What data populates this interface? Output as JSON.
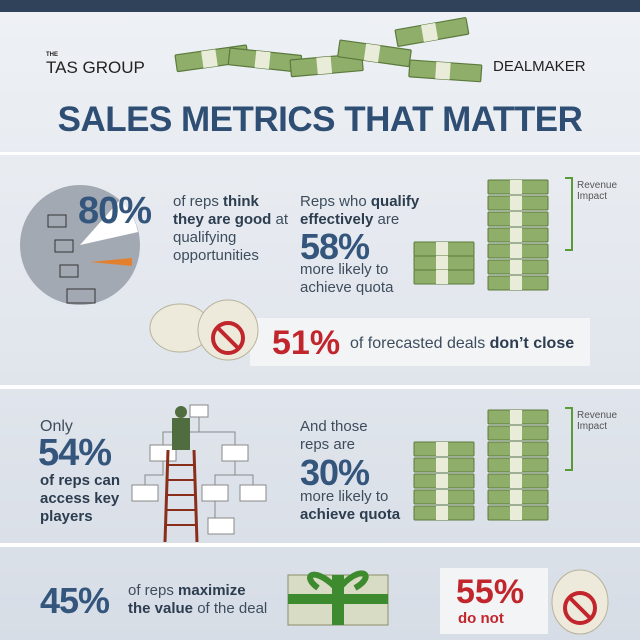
{
  "header": {
    "brand_small": "THE",
    "brand": "TAS GROUP",
    "partner": "DEALMAKER",
    "title": "SALES METRICS THAT MATTER"
  },
  "section1": {
    "stat": "80%",
    "text": [
      "of reps",
      "think they are good",
      "at qualifying opportunities"
    ],
    "right_text": [
      "Reps who",
      "qualify effectively",
      "are"
    ],
    "right_stat": "58%",
    "right_after": "more likely to achieve quota",
    "impact_label": "Revenue Impact",
    "banner": {
      "stat": "51%",
      "text": [
        "of forecasted deals",
        "don’t close"
      ]
    }
  },
  "section2": {
    "before": "Only",
    "stat": "54%",
    "text": "of reps can access key players",
    "right_text": "And those reps are",
    "right_stat": "30%",
    "right_after": [
      "more likely to",
      "achieve quota"
    ],
    "impact_label": "Revenue Impact"
  },
  "section3": {
    "stat": "45%",
    "text": [
      "of reps",
      "maximize the value",
      "of the deal"
    ],
    "right_stat": "55%",
    "right_text": "do not"
  }
}
